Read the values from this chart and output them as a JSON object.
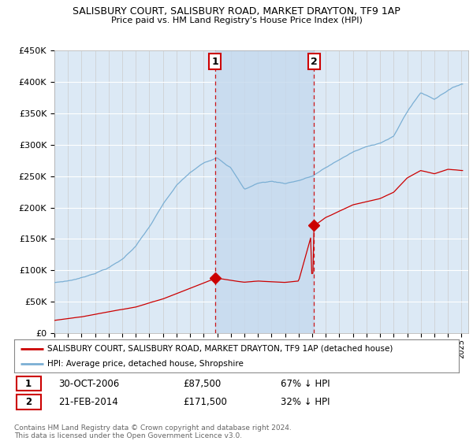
{
  "title": "SALISBURY COURT, SALISBURY ROAD, MARKET DRAYTON, TF9 1AP",
  "subtitle": "Price paid vs. HM Land Registry's House Price Index (HPI)",
  "ylim": [
    0,
    450000
  ],
  "xlim_start": 1995.0,
  "xlim_end": 2025.5,
  "legend_line1": "SALISBURY COURT, SALISBURY ROAD, MARKET DRAYTON, TF9 1AP (detached house)",
  "legend_line2": "HPI: Average price, detached house, Shropshire",
  "annotation1_label": "1",
  "annotation1_date": "30-OCT-2006",
  "annotation1_price": "£87,500",
  "annotation1_hpi": "67% ↓ HPI",
  "annotation2_label": "2",
  "annotation2_date": "21-FEB-2014",
  "annotation2_price": "£171,500",
  "annotation2_hpi": "32% ↓ HPI",
  "footnote": "Contains HM Land Registry data © Crown copyright and database right 2024.\nThis data is licensed under the Open Government Licence v3.0.",
  "hpi_color": "#7bafd4",
  "price_color": "#cc0000",
  "marker1_x": 2006.83,
  "marker1_y": 87500,
  "marker2_x": 2014.13,
  "marker2_y": 171500,
  "vline1_x": 2006.83,
  "vline2_x": 2014.13,
  "background_color": "#dce9f5",
  "shade_color": "#c5d9ee",
  "grid_color": "#cccccc"
}
